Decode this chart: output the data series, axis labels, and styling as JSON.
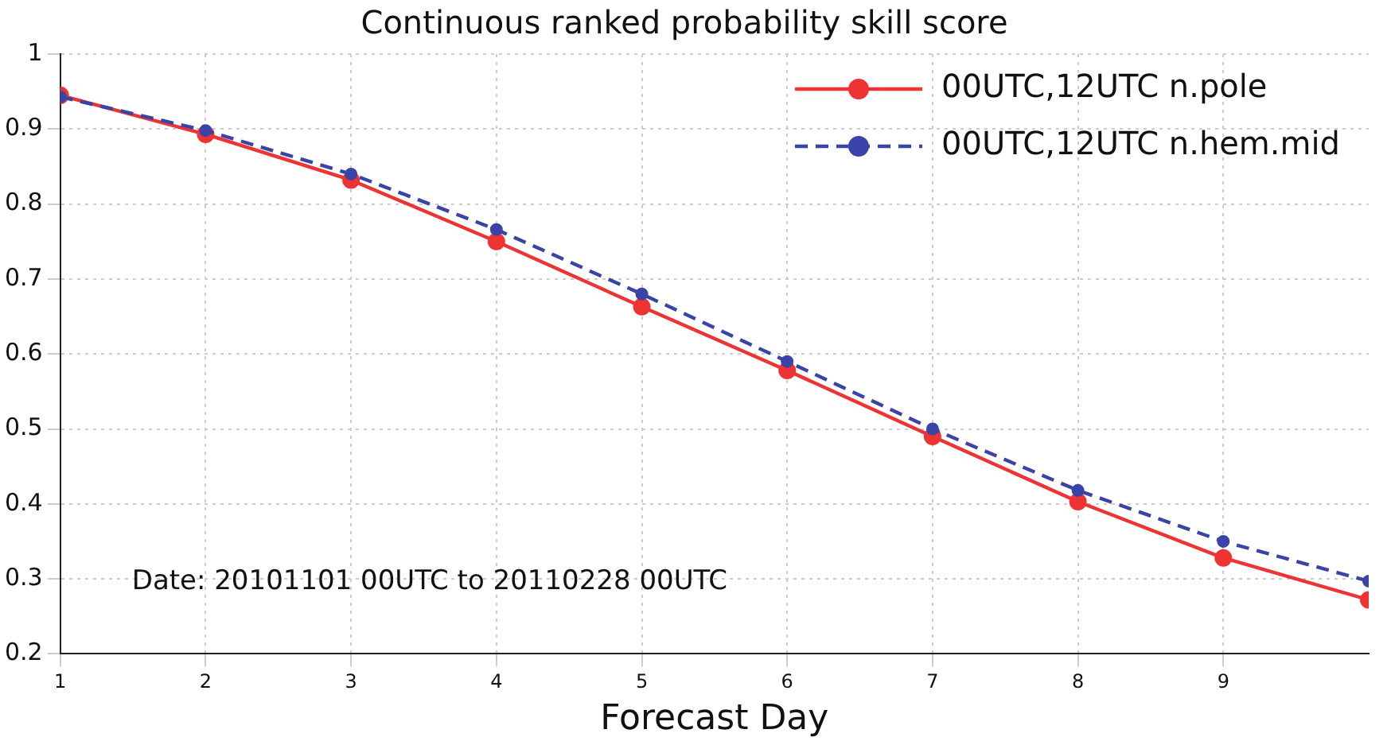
{
  "chart_data": {
    "type": "line",
    "title": "Continuous ranked probability skill score",
    "xlabel": "Forecast Day",
    "x": [
      1,
      2,
      3,
      4,
      5,
      6,
      7,
      8,
      9,
      10
    ],
    "series": [
      {
        "name": "00UTC,12UTC n.pole",
        "color": "#ee3333",
        "values": [
          0.945,
          0.893,
          0.832,
          0.75,
          0.663,
          0.578,
          0.49,
          0.403,
          0.328,
          0.272
        ],
        "line_style": "solid",
        "marker": "circle"
      },
      {
        "name": "00UTC,12UTC n.hem.mid",
        "color": "#3a44a8",
        "values": [
          0.943,
          0.898,
          0.84,
          0.766,
          0.68,
          0.59,
          0.5,
          0.418,
          0.35,
          0.297
        ],
        "line_style": "dashed",
        "marker": "circle"
      }
    ],
    "xlim": [
      1,
      10
    ],
    "xticks": [
      1,
      2,
      3,
      4,
      5,
      6,
      7,
      8,
      9
    ],
    "ylim": [
      0.2,
      1
    ],
    "yticks": [
      0.2,
      0.3,
      0.4,
      0.5,
      0.6,
      0.7,
      0.8,
      0.9,
      1
    ],
    "grid": true,
    "legend": "top right",
    "annotations": [
      "Date: 20101101 00UTC to 20110228 00UTC"
    ]
  }
}
